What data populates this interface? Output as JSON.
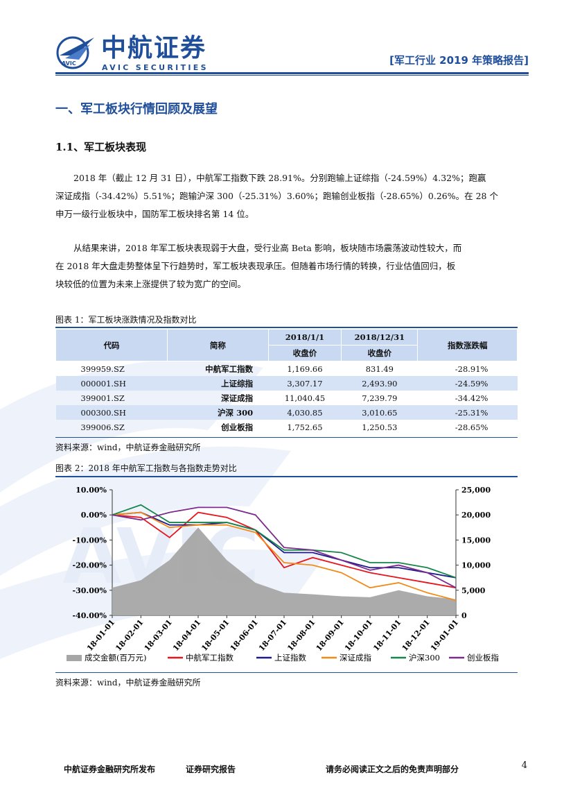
{
  "header": {
    "logo_cn": "中航证券",
    "logo_en": "AVIC SECURITIES",
    "logo_icon_text": "AVIC",
    "report_title": "[军工行业 2019 年策略报告]"
  },
  "section": {
    "h1": "一、军工板块行情回顾及展望",
    "h2": "1.1、军工板块表现"
  },
  "paragraphs": {
    "p1": [
      "2018 年（截止 12 月 31 日），中航军工指数下跌 28.91%。分别跑输上证综指（-24.59%）4.32%；跑赢",
      "深证成指（-34.42%）5.51%；跑输沪深 300（-25.31%）3.60%；跑输创业板指（-28.65%）0.26%。在 28 个",
      "申万一级行业板块中，国防军工板块排名第 14 位。"
    ],
    "p2": [
      "从结果来讲，2018 年军工板块表现弱于大盘，受行业高 Beta 影响，板块随市场震荡波动性较大，而",
      "在 2018 年大盘走势整体呈下行趋势时，军工板块表现承压。但随着市场行情的转换，行业估值回归，板",
      "块较低的位置为未来上涨提供了较为宽广的空间。"
    ]
  },
  "table1": {
    "caption": "图表 1：军工板块涨跌情况及指数对比",
    "headers": {
      "code": "代码",
      "name": "简称",
      "date1": "2018/1/1",
      "date2": "2018/12/31",
      "close1": "收盘价",
      "close2": "收盘价",
      "change": "指数涨跌幅"
    },
    "rows": [
      {
        "code": "399959.SZ",
        "name": "中航军工指数",
        "v1": "1,169.66",
        "v2": "831.49",
        "chg": "-28.91%"
      },
      {
        "code": "000001.SH",
        "name": "上证综指",
        "v1": "3,307.17",
        "v2": "2,493.90",
        "chg": "-24.59%"
      },
      {
        "code": "399001.SZ",
        "name": "深证成指",
        "v1": "11,040.45",
        "v2": "7,239.79",
        "chg": "-34.42%"
      },
      {
        "code": "000300.SH",
        "name": "沪深 300",
        "v1": "4,030.85",
        "v2": "3,010.65",
        "chg": "-25.31%"
      },
      {
        "code": "399006.SZ",
        "name": "创业板指",
        "v1": "1,752.65",
        "v2": "1,250.53",
        "chg": "-28.65%"
      }
    ],
    "source": "资料来源：wind，中航证券金融研究所"
  },
  "figure2": {
    "caption": "图表 2：2018 年中航军工指数与各指数走势对比",
    "source": "资料来源：wind，中航证券金融研究所"
  },
  "chart_data": {
    "type": "line",
    "x": [
      "18-01-01",
      "18-02-01",
      "18-03-01",
      "18-04-01",
      "18-05-01",
      "18-06-01",
      "18-07-01",
      "18-08-01",
      "18-09-01",
      "18-10-01",
      "18-11-01",
      "18-12-01",
      "19-01-01"
    ],
    "y_left_ticks": [
      "10.00%",
      "0.00%",
      "-10.00%",
      "-20.00%",
      "-30.00%",
      "-40.00%"
    ],
    "y_left_range": [
      -40,
      10
    ],
    "y_right_ticks": [
      "25,000",
      "20,000",
      "15,000",
      "10,000",
      "5,000",
      "0"
    ],
    "y_right_range": [
      0,
      25000
    ],
    "grid": false,
    "legend_position": "bottom",
    "series": [
      {
        "name": "成交金额(百万元)",
        "kind": "area",
        "axis": "right",
        "color": "#a6a6a6",
        "values": [
          5500,
          7000,
          11000,
          17500,
          11000,
          6500,
          4500,
          4200,
          3800,
          3600,
          5000,
          3800,
          3200
        ]
      },
      {
        "name": "中航军工指数",
        "kind": "line",
        "axis": "left",
        "color": "#e8141c",
        "values": [
          0,
          -1,
          -9,
          1,
          -1,
          -6,
          -21,
          -17,
          -20,
          -23,
          -25,
          -27,
          -29
        ]
      },
      {
        "name": "上证指数",
        "kind": "line",
        "axis": "left",
        "color": "#1a1a8c",
        "values": [
          0,
          1,
          -4,
          -4,
          -3,
          -6,
          -15,
          -15,
          -18,
          -21,
          -21,
          -23,
          -25
        ]
      },
      {
        "name": "深证成指",
        "kind": "line",
        "axis": "left",
        "color": "#f08a18",
        "values": [
          0,
          1,
          -5,
          -4,
          -4,
          -7,
          -19,
          -20,
          -23,
          -29,
          -27,
          -31,
          -34
        ]
      },
      {
        "name": "沪深300",
        "kind": "line",
        "axis": "left",
        "color": "#16864a",
        "values": [
          0,
          4,
          -3,
          -3,
          -3,
          -6,
          -14,
          -14,
          -15,
          -19,
          -19,
          -21,
          -25
        ]
      },
      {
        "name": "创业板指",
        "kind": "line",
        "axis": "left",
        "color": "#7b2a8e",
        "values": [
          0,
          -2,
          1,
          3,
          3,
          0,
          -13,
          -14,
          -18,
          -22,
          -20,
          -23,
          -29
        ]
      }
    ]
  },
  "footer": {
    "publisher": "中航证券金融研究所发布",
    "report_type": "证券研究报告",
    "disclaimer": "请务必阅读正文之后的免责声明部分",
    "page": "4"
  }
}
